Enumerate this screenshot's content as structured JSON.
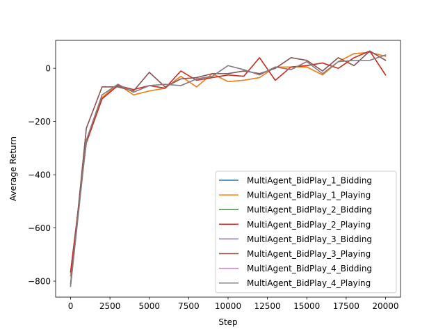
{
  "chart_data": {
    "type": "line",
    "title": "",
    "xlabel": "Step",
    "ylabel": "Average Return",
    "xlim": [
      -950,
      20950
    ],
    "ylim": [
      -860,
      105
    ],
    "xticks": [
      0,
      2500,
      5000,
      7500,
      10000,
      12500,
      15000,
      17500,
      20000
    ],
    "xtick_labels": [
      "0",
      "2500",
      "5000",
      "7500",
      "10000",
      "12500",
      "15000",
      "17500",
      "20000"
    ],
    "yticks": [
      0,
      -200,
      -400,
      -600,
      -800
    ],
    "ytick_labels": [
      "0",
      "−200",
      "−400",
      "−600",
      "−800"
    ],
    "grid": false,
    "legend_position": "lower-right",
    "x": [
      0,
      1000,
      2000,
      3000,
      4000,
      5000,
      6000,
      7000,
      8000,
      9000,
      10000,
      11000,
      12000,
      13000,
      14000,
      15000,
      16000,
      17000,
      18000,
      19000,
      20000
    ],
    "series": [
      {
        "name": "MultiAgent_BidPlay_1_Bidding",
        "color": "#1f77b4",
        "values": [
          -780,
          -270,
          -110,
          -60,
          -100,
          -85,
          -75,
          -30,
          -70,
          -20,
          -50,
          -45,
          -35,
          5,
          5,
          5,
          -25,
          25,
          55,
          60,
          45
        ]
      },
      {
        "name": "MultiAgent_BidPlay_1_Playing",
        "color": "#ff7f0e",
        "values": [
          -780,
          -270,
          -110,
          -60,
          -100,
          -85,
          -75,
          -30,
          -70,
          -20,
          -50,
          -45,
          -35,
          5,
          5,
          5,
          -25,
          25,
          55,
          60,
          45
        ]
      },
      {
        "name": "MultiAgent_BidPlay_2_Bidding",
        "color": "#2ca02c",
        "values": [
          -765,
          -280,
          -115,
          -65,
          -80,
          -65,
          -75,
          -10,
          -45,
          -35,
          -25,
          -30,
          40,
          -45,
          5,
          10,
          20,
          0,
          40,
          65,
          -25
        ]
      },
      {
        "name": "MultiAgent_BidPlay_2_Playing",
        "color": "#d62728",
        "values": [
          -765,
          -280,
          -115,
          -65,
          -80,
          -65,
          -75,
          -10,
          -45,
          -35,
          -25,
          -30,
          40,
          -45,
          5,
          10,
          20,
          0,
          40,
          65,
          -25
        ]
      },
      {
        "name": "MultiAgent_BidPlay_3_Bidding",
        "color": "#9467bd",
        "values": [
          -810,
          -225,
          -70,
          -70,
          -85,
          -15,
          -70,
          -40,
          -35,
          -20,
          -20,
          -10,
          -20,
          0,
          40,
          30,
          -10,
          40,
          10,
          65,
          30
        ]
      },
      {
        "name": "MultiAgent_BidPlay_3_Playing",
        "color": "#8c564b",
        "values": [
          -810,
          -225,
          -70,
          -70,
          -85,
          -15,
          -70,
          -40,
          -35,
          -20,
          -20,
          -10,
          -20,
          0,
          40,
          30,
          -10,
          40,
          10,
          65,
          30
        ]
      },
      {
        "name": "MultiAgent_BidPlay_4_Bidding",
        "color": "#e377c2",
        "values": [
          -820,
          -270,
          -100,
          -60,
          -90,
          -65,
          -60,
          -65,
          -40,
          -30,
          10,
          -5,
          -25,
          5,
          -5,
          25,
          -20,
          25,
          30,
          30,
          50
        ]
      },
      {
        "name": "MultiAgent_BidPlay_4_Playing",
        "color": "#7f7f7f",
        "values": [
          -820,
          -270,
          -100,
          -60,
          -90,
          -65,
          -60,
          -65,
          -40,
          -30,
          10,
          -5,
          -25,
          5,
          -5,
          25,
          -20,
          25,
          30,
          30,
          50
        ]
      }
    ]
  }
}
